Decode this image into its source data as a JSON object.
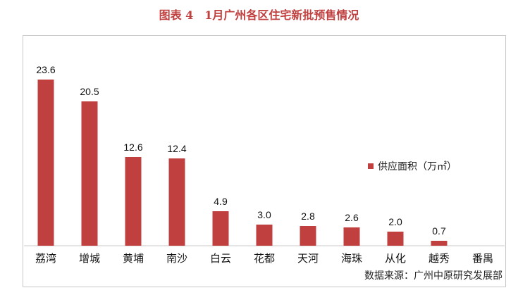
{
  "title": "图表 4　1月广州各区住宅新批预售情况",
  "source": "数据来源：广州中原研究发展部",
  "colors": {
    "bar": "#c0403f",
    "title": "#c0403f",
    "axis": "#c8c8c8"
  },
  "chart_data": {
    "type": "bar",
    "title": "图表 4　1月广州各区住宅新批预售情况",
    "categories": [
      "荔湾",
      "增城",
      "黄埔",
      "南沙",
      "白云",
      "花都",
      "天河",
      "海珠",
      "从化",
      "越秀",
      "番禺"
    ],
    "series": [
      {
        "name": "供应面积（万㎡）",
        "values": [
          23.6,
          20.5,
          12.6,
          12.4,
          4.9,
          3.0,
          2.8,
          2.6,
          2.0,
          0.7,
          0
        ]
      }
    ],
    "value_labels": [
      "23.6",
      "20.5",
      "12.6",
      "12.4",
      "4.9",
      "3.0",
      "2.8",
      "2.6",
      "2.0",
      "0.7",
      ""
    ],
    "ylim": [
      0,
      23.6
    ],
    "grid": false,
    "legend_position": "right"
  }
}
